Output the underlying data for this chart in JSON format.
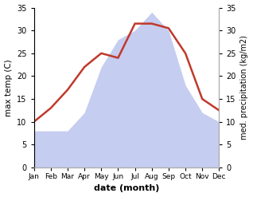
{
  "months": [
    "Jan",
    "Feb",
    "Mar",
    "Apr",
    "May",
    "Jun",
    "Jul",
    "Aug",
    "Sep",
    "Oct",
    "Nov",
    "Dec"
  ],
  "temperature": [
    10,
    13,
    17,
    22,
    25,
    24,
    31.5,
    31.5,
    30.5,
    25,
    15,
    12.5
  ],
  "precipitation": [
    8,
    8,
    8,
    12,
    22,
    28,
    30,
    34,
    30,
    18,
    12,
    10
  ],
  "temp_color": "#c0392b",
  "precip_fill_color": "#c5cdf0",
  "precip_edge_color": "#aab4e8",
  "temp_ylim": [
    0,
    35
  ],
  "precip_ylim": [
    0,
    35
  ],
  "xlabel": "date (month)",
  "ylabel_left": "max temp (C)",
  "ylabel_right": "med. precipitation (kg/m2)",
  "background_color": "#ffffff",
  "temp_linewidth": 1.8,
  "yticks": [
    0,
    5,
    10,
    15,
    20,
    25,
    30,
    35
  ]
}
